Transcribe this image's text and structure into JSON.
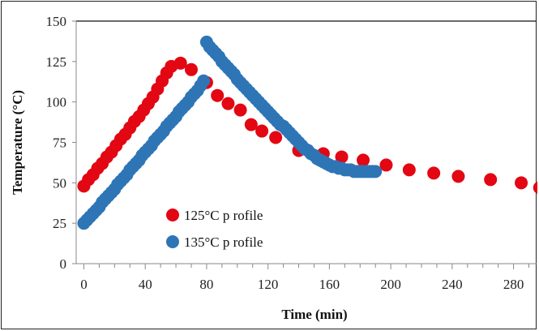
{
  "chart_data": {
    "type": "scatter",
    "title": "",
    "xlabel": "Time (min)",
    "ylabel": "Temperature  (°C)",
    "xlim": [
      -5,
      295
    ],
    "ylim": [
      0,
      150
    ],
    "xticks": [
      0,
      40,
      80,
      120,
      160,
      200,
      240,
      280
    ],
    "yticks": [
      0,
      25,
      50,
      75,
      100,
      125,
      150
    ],
    "grid": "vertical minor ticks only",
    "legend_position": "lower-left",
    "series": [
      {
        "name": "125°C p rofile",
        "color": "#e30613",
        "x": [
          0,
          3,
          6,
          9,
          12,
          15,
          18,
          21,
          24,
          27,
          30,
          33,
          36,
          39,
          42,
          45,
          48,
          51,
          54,
          57,
          63,
          70,
          80,
          87,
          94,
          102,
          109,
          116,
          125,
          140,
          156,
          168,
          182,
          197,
          212,
          228,
          244,
          265,
          285,
          297
        ],
        "y": [
          48,
          52,
          55,
          59,
          62,
          66,
          69,
          73,
          77,
          80,
          84,
          88,
          91,
          95,
          99,
          103,
          108,
          113,
          118,
          122,
          124,
          120,
          112,
          104,
          99,
          95,
          86,
          82,
          78,
          70,
          68,
          66,
          64,
          61,
          58,
          56,
          54,
          52,
          50,
          47
        ]
      },
      {
        "name": "135°C p rofile",
        "color": "#2e75b6",
        "x": [
          0,
          2,
          4,
          6,
          8,
          10,
          12,
          14,
          16,
          18,
          20,
          22,
          24,
          26,
          28,
          30,
          32,
          34,
          36,
          38,
          40,
          42,
          44,
          46,
          48,
          50,
          52,
          54,
          56,
          58,
          60,
          62,
          64,
          66,
          68,
          70,
          72,
          74,
          76,
          78,
          80,
          82,
          84,
          86,
          88,
          90,
          92,
          94,
          96,
          98,
          100,
          102,
          104,
          106,
          108,
          110,
          112,
          114,
          116,
          118,
          120,
          122,
          124,
          126,
          128,
          130,
          132,
          134,
          136,
          138,
          140,
          142,
          144,
          146,
          148,
          150,
          152,
          154,
          156,
          158,
          160,
          162,
          164,
          166,
          168,
          170,
          172,
          174,
          176,
          178,
          180,
          182,
          184,
          186,
          188,
          190
        ],
        "y": [
          25,
          27,
          29,
          31,
          33,
          35,
          38,
          40,
          42,
          44,
          46,
          49,
          51,
          53,
          55,
          58,
          60,
          62,
          64,
          67,
          69,
          71,
          73,
          76,
          78,
          80,
          82,
          85,
          87,
          89,
          91,
          94,
          96,
          98,
          100,
          103,
          105,
          107,
          110,
          113,
          137,
          134,
          132,
          130,
          128,
          125,
          123,
          121,
          119,
          117,
          114,
          112,
          110,
          108,
          106,
          104,
          102,
          100,
          98,
          96,
          94,
          92,
          90,
          88,
          86,
          85,
          83,
          81,
          79,
          77,
          75,
          73,
          71,
          70,
          68,
          67,
          65,
          64,
          63,
          62,
          61,
          60,
          60,
          59,
          59,
          58,
          58,
          58,
          57,
          57,
          57,
          57,
          57,
          57,
          57,
          57
        ]
      }
    ]
  }
}
